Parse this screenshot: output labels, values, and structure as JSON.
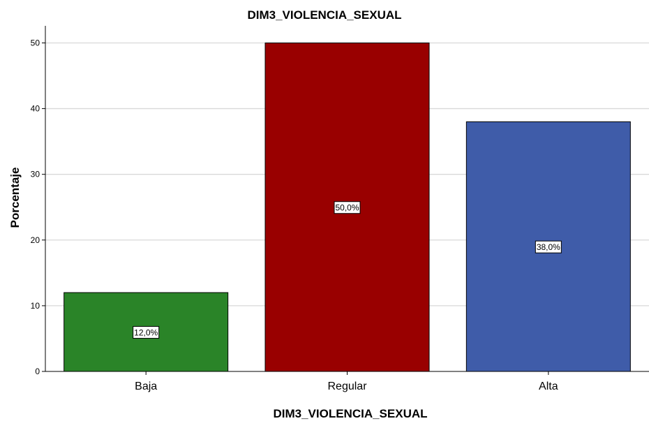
{
  "chart_data": {
    "type": "bar",
    "title": "DIM3_VIOLENCIA_SEXUAL",
    "xlabel": "DIM3_VIOLENCIA_SEXUAL",
    "ylabel": "Porcentaje",
    "categories": [
      "Baja",
      "Regular",
      "Alta"
    ],
    "values": [
      12,
      50,
      38
    ],
    "data_labels": [
      "12,0%",
      "50,0%",
      "38,0%"
    ],
    "colors": [
      "#2a8428",
      "#990000",
      "#3f5ca9"
    ],
    "yticks": [
      0,
      10,
      20,
      30,
      40,
      50
    ],
    "ylim": [
      0,
      52.6
    ],
    "grid": true,
    "gridline_color": "#d9d9d9"
  }
}
